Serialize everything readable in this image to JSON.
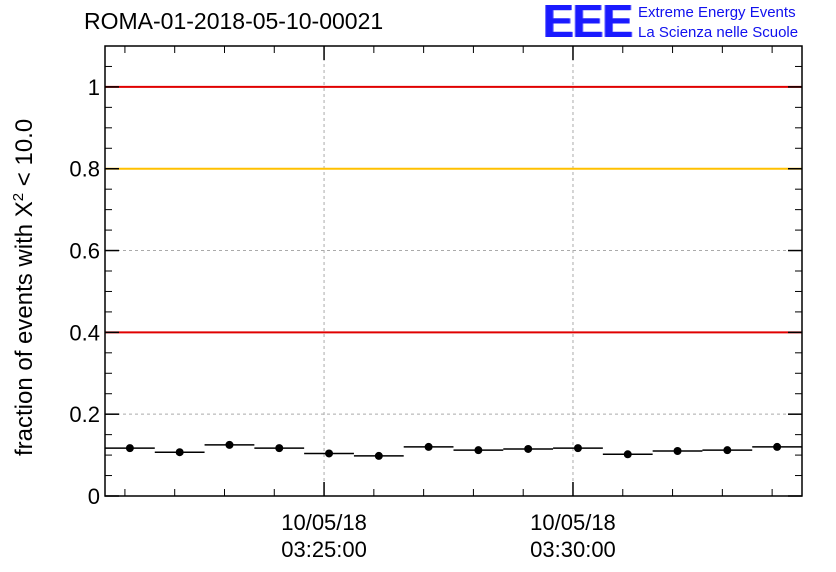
{
  "title": "ROMA-01-2018-05-10-00021",
  "logo": {
    "mark": "EEE",
    "line1": "Extreme Energy Events",
    "line2": "La Scienza nelle Scuole"
  },
  "chart_data": {
    "type": "scatter",
    "title": "ROMA-01-2018-05-10-00021",
    "ylabel_parts": {
      "pre": "fraction of events with X",
      "sup": "2",
      "post": " < 10.0"
    },
    "xlabel": "",
    "ylim": [
      0,
      1.1
    ],
    "yticks": [
      0,
      0.2,
      0.4,
      0.6,
      0.8,
      1
    ],
    "ytick_labels": [
      "0",
      "0.2",
      "0.4",
      "0.6",
      "0.8",
      "1"
    ],
    "xticks": [
      {
        "time": "03:25:00",
        "date": "10/05/18"
      },
      {
        "time": "03:30:00",
        "date": "10/05/18"
      }
    ],
    "grid": true,
    "reference_lines": [
      {
        "y": 1.0,
        "color": "#e00000"
      },
      {
        "y": 0.8,
        "color": "#ffc000"
      },
      {
        "y": 0.4,
        "color": "#e00000"
      }
    ],
    "points": [
      {
        "t": "03:21:06",
        "y": 0.117
      },
      {
        "t": "03:22:06",
        "y": 0.107
      },
      {
        "t": "03:23:06",
        "y": 0.125
      },
      {
        "t": "03:24:06",
        "y": 0.117
      },
      {
        "t": "03:25:06",
        "y": 0.104
      },
      {
        "t": "03:26:06",
        "y": 0.098
      },
      {
        "t": "03:27:06",
        "y": 0.12
      },
      {
        "t": "03:28:06",
        "y": 0.112
      },
      {
        "t": "03:29:06",
        "y": 0.115
      },
      {
        "t": "03:30:06",
        "y": 0.117
      },
      {
        "t": "03:31:06",
        "y": 0.102
      },
      {
        "t": "03:32:06",
        "y": 0.11
      },
      {
        "t": "03:33:06",
        "y": 0.112
      },
      {
        "t": "03:34:06",
        "y": 0.12
      }
    ],
    "x_bin_width_seconds": 60,
    "x_range": [
      "03:20:36",
      "03:34:36"
    ],
    "colors": {
      "axis": "#000000",
      "grid": "#aaaaaa",
      "point": "#000000"
    }
  }
}
